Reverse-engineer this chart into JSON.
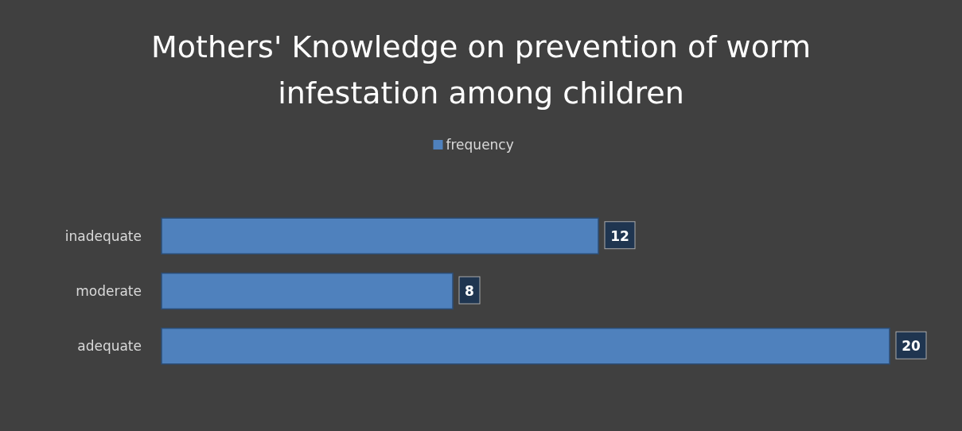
{
  "chart_data": {
    "type": "bar",
    "orientation": "horizontal",
    "title": "Mothers' Knowledge on prevention of worm infestation among children",
    "categories": [
      "inadequate",
      "moderate",
      "adequate"
    ],
    "series": [
      {
        "name": "frequency",
        "color": "#4f81bd",
        "values": [
          12,
          8,
          20
        ]
      }
    ],
    "data_labels": true,
    "legend": "top"
  }
}
